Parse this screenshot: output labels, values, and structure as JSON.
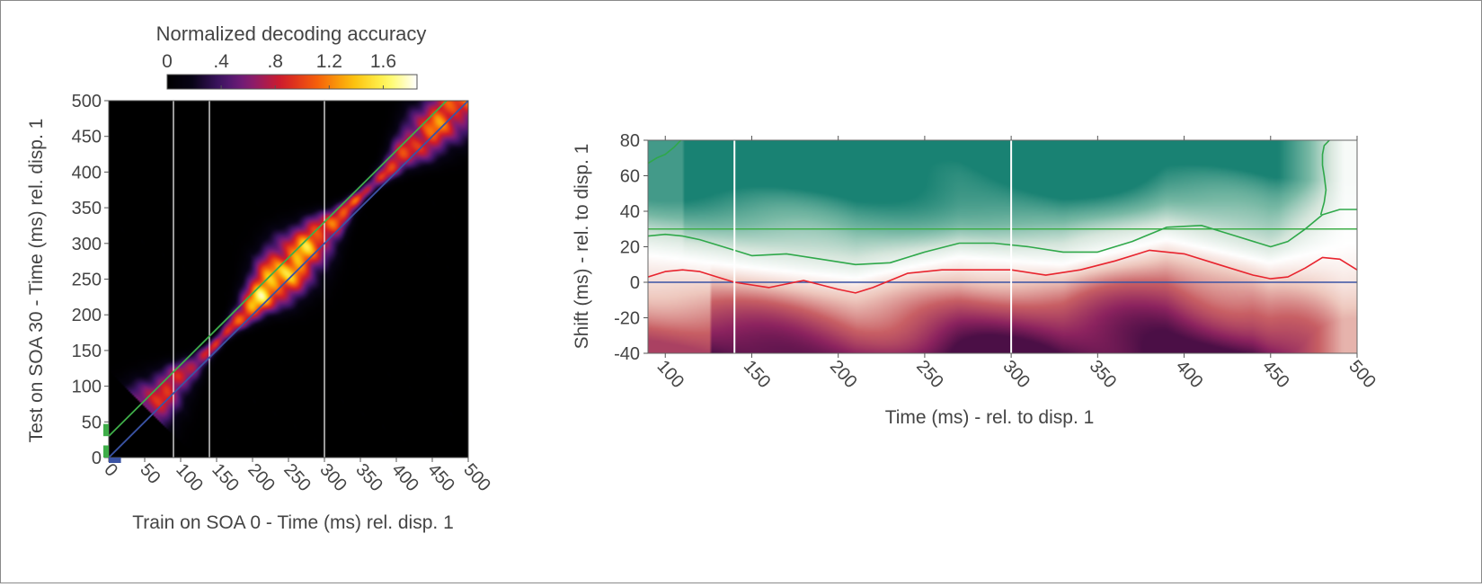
{
  "chart_data": [
    {
      "type": "heatmap",
      "title": "Normalized decoding accuracy",
      "colorbar": {
        "ticks": [
          "0",
          ".4",
          ".8",
          "1.2",
          "1.6"
        ],
        "tick_values": [
          0,
          0.4,
          0.8,
          1.2,
          1.6
        ],
        "range": [
          0,
          1.85
        ],
        "colormap": "black-purple-red-orange-yellow-white"
      },
      "xlabel": "Train on SOA 0 - Time (ms) rel. disp. 1",
      "ylabel": "Test on SOA 30 - Time (ms) rel. disp. 1",
      "xlim": [
        0,
        500
      ],
      "ylim": [
        0,
        500
      ],
      "xticks": [
        0,
        50,
        100,
        150,
        200,
        250,
        300,
        350,
        400,
        450,
        500
      ],
      "yticks": [
        0,
        50,
        100,
        150,
        200,
        250,
        300,
        350,
        400,
        450,
        500
      ],
      "vertical_markers": [
        90,
        140,
        300
      ],
      "reference_lines": [
        {
          "name": "shift 30 ms",
          "color": "#3fae49",
          "intercept": 30,
          "slope": 1
        },
        {
          "name": "shift 0 ms",
          "color": "#3a53a4",
          "intercept": 0,
          "slope": 1
        }
      ],
      "axis_stimulus_markers": [
        {
          "axis": "y",
          "from": 0,
          "to": 17,
          "color": "#3fae49"
        },
        {
          "axis": "y",
          "from": 30,
          "to": 47,
          "color": "#3fae49"
        },
        {
          "axis": "x",
          "from": 0,
          "to": 17,
          "color": "#3a53a4"
        }
      ],
      "high_accuracy_band": {
        "centers": [
          {
            "t": 90,
            "offset": 15,
            "peak": 1.0
          },
          {
            "t": 150,
            "offset": 10,
            "peak": 0.9
          },
          {
            "t": 230,
            "offset": 15,
            "peak": 1.8
          },
          {
            "t": 300,
            "offset": 20,
            "peak": 1.4
          },
          {
            "t": 380,
            "offset": 15,
            "peak": 1.0
          },
          {
            "t": 470,
            "offset": 10,
            "peak": 1.3
          }
        ]
      }
    },
    {
      "type": "heatmap",
      "xlabel": "Time (ms) - rel. to disp. 1",
      "ylabel": "Shift (ms) - rel. to disp. 1",
      "xlim": [
        90,
        500
      ],
      "ylim": [
        -40,
        80
      ],
      "xticks": [
        100,
        150,
        200,
        250,
        300,
        350,
        400,
        450,
        500
      ],
      "yticks": [
        -40,
        -20,
        0,
        20,
        40,
        60,
        80
      ],
      "colormap": "purple-red-white-green (diverging)",
      "vertical_markers": [
        140,
        300
      ],
      "horizontal_lines": [
        {
          "value": 30,
          "color": "#3fae49"
        },
        {
          "value": 0,
          "color": "#3a53a4"
        }
      ],
      "series": [
        {
          "name": "upper boundary",
          "color": "#2fa84a",
          "x": [
            90,
            100,
            110,
            120,
            130,
            140,
            150,
            170,
            190,
            210,
            230,
            250,
            270,
            290,
            310,
            330,
            350,
            370,
            390,
            410,
            430,
            450,
            460,
            470,
            480,
            490,
            500
          ],
          "y": [
            26,
            27,
            26,
            24,
            21,
            18,
            15,
            16,
            13,
            10,
            11,
            17,
            22,
            22,
            20,
            17,
            17,
            23,
            31,
            32,
            26,
            20,
            23,
            30,
            38,
            41,
            41
          ]
        },
        {
          "name": "upper boundary (top segment)",
          "color": "#2fa84a",
          "x": [
            90,
            95,
            100,
            105,
            109
          ],
          "y": [
            67,
            70,
            72,
            76,
            80
          ]
        },
        {
          "name": "upper boundary (right segment)",
          "color": "#2fa84a",
          "x": [
            479,
            481,
            482,
            481,
            480,
            480,
            481,
            484
          ],
          "y": [
            38,
            45,
            52,
            60,
            66,
            72,
            77,
            80
          ]
        },
        {
          "name": "lower boundary",
          "color": "#e8242e",
          "x": [
            90,
            100,
            110,
            120,
            130,
            140,
            160,
            180,
            200,
            210,
            220,
            240,
            260,
            280,
            300,
            320,
            340,
            360,
            380,
            400,
            420,
            440,
            450,
            460,
            470,
            480,
            490,
            500
          ],
          "y": [
            3,
            6,
            7,
            6,
            3,
            0,
            -3,
            1,
            -4,
            -6,
            -3,
            5,
            7,
            7,
            7,
            4,
            7,
            12,
            18,
            16,
            10,
            4,
            2,
            3,
            8,
            14,
            13,
            7
          ]
        }
      ],
      "value_field": {
        "zero_contour_shift_by_time": [
          {
            "t": 90,
            "shift": 15
          },
          {
            "t": 150,
            "shift": 8
          },
          {
            "t": 210,
            "shift": 2
          },
          {
            "t": 270,
            "shift": 14
          },
          {
            "t": 330,
            "shift": 10
          },
          {
            "t": 390,
            "shift": 24
          },
          {
            "t": 450,
            "shift": 11
          },
          {
            "t": 500,
            "shift": 22
          }
        ],
        "notes": "positive (green) above contour, negative (purple/red) below"
      }
    }
  ]
}
